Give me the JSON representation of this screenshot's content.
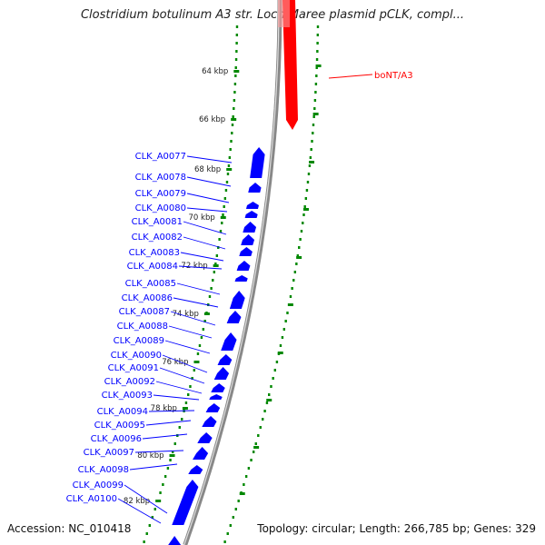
{
  "title": "Clostridium botulinum A3 str. Loch Maree plasmid pCLK, compl...",
  "footer": {
    "accession": "Accession: NC_010418",
    "summary": "Topology: circular; Length: 266,785 bp; Genes: 329"
  },
  "colors": {
    "highlight_gene": "#ff0000",
    "genes": "#0000ff",
    "tick_marks": "#008800",
    "backbone": "#888888"
  },
  "backbone_ticks": [
    "64 kbp",
    "66 kbp",
    "68 kbp",
    "70 kbp",
    "72 kbp",
    "74 kbp",
    "76 kbp",
    "78 kbp",
    "80 kbp",
    "82 kbp"
  ],
  "highlight_gene": {
    "label": "boNT/A3"
  },
  "genes": [
    "CLK_A0077",
    "CLK_A0078",
    "CLK_A0079",
    "CLK_A0080",
    "CLK_A0081",
    "CLK_A0082",
    "CLK_A0083",
    "CLK_A0084",
    "CLK_A0085",
    "CLK_A0086",
    "CLK_A0087",
    "CLK_A0088",
    "CLK_A0089",
    "CLK_A0090",
    "CLK_A0091",
    "CLK_A0092",
    "CLK_A0093",
    "CLK_A0094",
    "CLK_A0095",
    "CLK_A0096",
    "CLK_A0097",
    "CLK_A0098",
    "CLK_A0099",
    "CLK_A0100"
  ]
}
